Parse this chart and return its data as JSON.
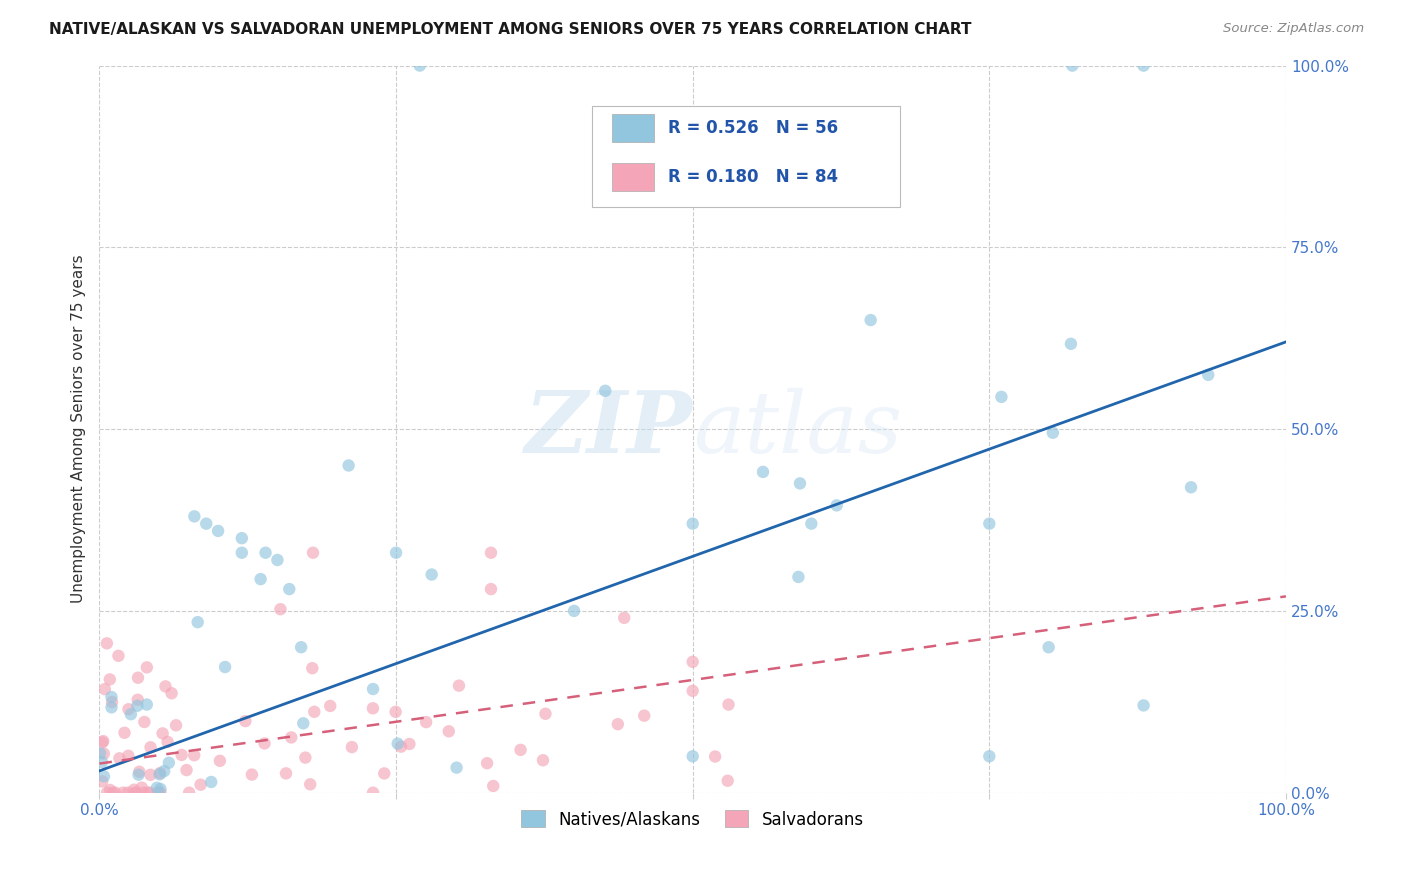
{
  "title": "NATIVE/ALASKAN VS SALVADORAN UNEMPLOYMENT AMONG SENIORS OVER 75 YEARS CORRELATION CHART",
  "source": "Source: ZipAtlas.com",
  "ylabel": "Unemployment Among Seniors over 75 years",
  "ytick_vals": [
    0.0,
    0.25,
    0.5,
    0.75,
    1.0
  ],
  "ytick_labels": [
    "0.0%",
    "25.0%",
    "50.0%",
    "75.0%",
    "100.0%"
  ],
  "xtick_vals": [
    0.0,
    0.25,
    0.5,
    0.75,
    1.0
  ],
  "xtick_labels": [
    "0.0%",
    "",
    "",
    "",
    "100.0%"
  ],
  "blue_color": "#92c5de",
  "blue_line_color": "#2166ac",
  "pink_color": "#f4a6b8",
  "pink_line_color": "#d6607a",
  "blue_trend_y_start": 0.03,
  "blue_trend_y_end": 0.62,
  "pink_trend_y_start": 0.04,
  "pink_trend_y_end": 0.27,
  "watermark_zip": "ZIP",
  "watermark_atlas": "atlas",
  "bg_color": "#ffffff",
  "grid_color": "#cccccc",
  "legend_blue_label": "Natives/Alaskans",
  "legend_pink_label": "Salvadorans",
  "tick_color": "#4477cc",
  "axis_label_color": "#333333"
}
